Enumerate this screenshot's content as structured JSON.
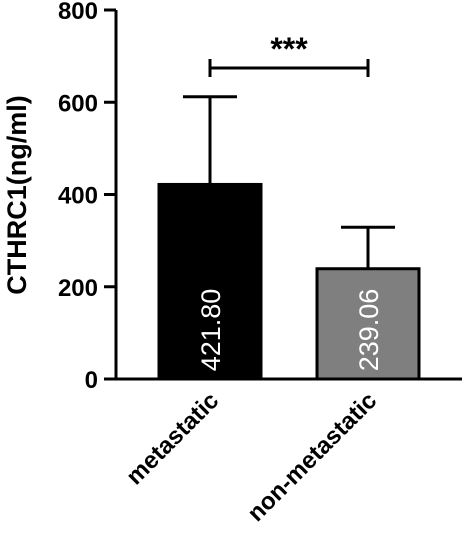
{
  "chart_data": {
    "type": "bar",
    "categories": [
      "metastatic",
      "non-metastatic"
    ],
    "values": [
      421.8,
      239.06
    ],
    "error_upper": [
      612,
      329
    ],
    "data_labels": [
      "421.80",
      "239.06"
    ],
    "bar_colors": [
      "#000000",
      "#7f7f7f"
    ],
    "ylabel": "CTHRC1(ng/ml)",
    "ylim": [
      0,
      800
    ],
    "yticks": [
      0,
      200,
      400,
      600,
      800
    ],
    "ytick_labels": [
      "0",
      "200",
      "400",
      "600",
      "800"
    ],
    "grid": false,
    "significance": {
      "between": [
        "metastatic",
        "non-metastatic"
      ],
      "label": "***"
    }
  }
}
